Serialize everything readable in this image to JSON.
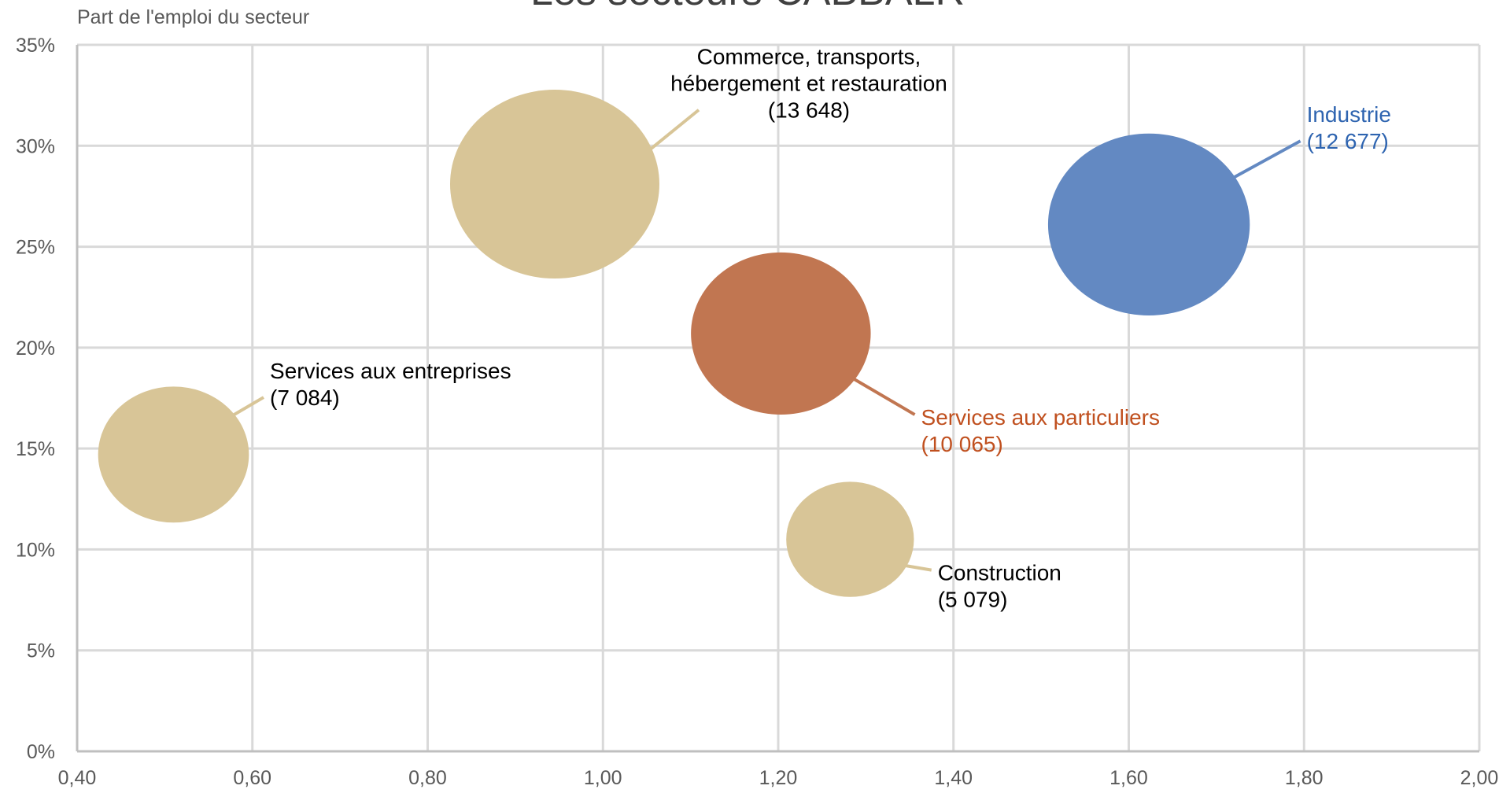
{
  "chart_data": {
    "type": "bubble",
    "title": "Les secteurs CABBALR",
    "ylabel": "Part de l'emploi du secteur",
    "xlabel": "",
    "xlim": [
      0.4,
      2.0
    ],
    "ylim": [
      0,
      0.35
    ],
    "x_ticks": [
      "0,40",
      "0,60",
      "0,80",
      "1,00",
      "1,20",
      "1,40",
      "1,60",
      "1,80",
      "2,00"
    ],
    "y_ticks": [
      "0%",
      "5%",
      "10%",
      "15%",
      "20%",
      "25%",
      "30%",
      "35%"
    ],
    "grid": true,
    "points": [
      {
        "label_lines": [
          "Commerce, transports,",
          "hébergement et restauration",
          "(13 648)"
        ],
        "x": 0.945,
        "y": 0.281,
        "size": 13648,
        "color": "#d8c597",
        "label_color": "#000000",
        "label_anchor": "middle",
        "label_dx": 0.29,
        "label_dy": 0.05
      },
      {
        "label_lines": [
          "Industrie",
          "(12 677)"
        ],
        "x": 1.623,
        "y": 0.261,
        "size": 12677,
        "color": "#6389c2",
        "label_color": "#2e64b0",
        "label_anchor": "start",
        "label_dx": 0.18,
        "label_dy": 0.048
      },
      {
        "label_lines": [
          "Services aux particuliers",
          "(10 065)"
        ],
        "x": 1.203,
        "y": 0.207,
        "size": 10065,
        "color": "#c17651",
        "label_color": "#c0501f",
        "label_anchor": "start",
        "label_dx": 0.16,
        "label_dy": -0.048
      },
      {
        "label_lines": [
          "Services aux entreprises",
          "(7 084)"
        ],
        "x": 0.51,
        "y": 0.147,
        "size": 7084,
        "color": "#d8c597",
        "label_color": "#000000",
        "label_anchor": "start",
        "label_dx": 0.11,
        "label_dy": 0.035
      },
      {
        "label_lines": [
          "Construction",
          "(5 079)"
        ],
        "x": 1.282,
        "y": 0.105,
        "size": 5079,
        "color": "#d8c597",
        "label_color": "#000000",
        "label_anchor": "start",
        "label_dx": 0.1,
        "label_dy": -0.023
      }
    ]
  }
}
